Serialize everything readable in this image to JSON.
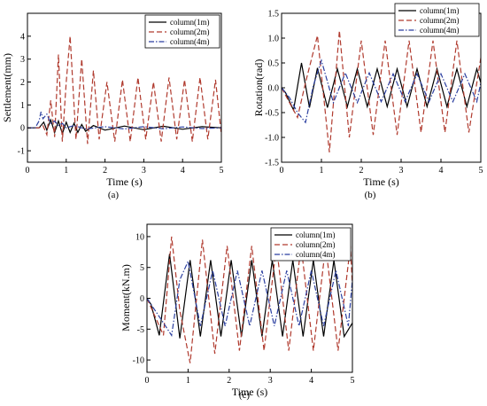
{
  "chart_data": [
    {
      "type": "line",
      "panel_label": "(a)",
      "xlabel": "Time (s)",
      "ylabel": "Settlement(mm)",
      "xlim": [
        0,
        5
      ],
      "ylim": [
        -1.5,
        5.0
      ],
      "xticks": [
        0,
        1,
        2,
        3,
        4,
        5
      ],
      "yticks": [
        -1,
        0,
        1,
        2,
        3,
        4
      ],
      "legend_placement": "top-right",
      "series": [
        {
          "name": "column(1m)",
          "color": "#000000",
          "dash": "solid",
          "x": [
            0,
            0.3,
            0.42,
            0.5,
            0.6,
            0.7,
            0.8,
            0.9,
            1.0,
            1.1,
            1.2,
            1.3,
            1.4,
            1.5,
            1.7,
            2.0,
            2.5,
            3.0,
            3.5,
            4.0,
            4.5,
            5.0
          ],
          "y": [
            0,
            0,
            0.25,
            -0.1,
            0.35,
            -0.2,
            0.3,
            -0.25,
            0.25,
            -0.2,
            0.2,
            -0.2,
            0.15,
            -0.15,
            0.1,
            -0.1,
            0.08,
            -0.08,
            0.07,
            -0.06,
            0.05,
            0
          ]
        },
        {
          "name": "column(2m)",
          "color": "#b03a2e",
          "dash": "dashed",
          "x": [
            0,
            0.3,
            0.4,
            0.5,
            0.6,
            0.7,
            0.8,
            0.9,
            1.0,
            1.1,
            1.25,
            1.4,
            1.55,
            1.7,
            1.85,
            2.05,
            2.25,
            2.45,
            2.65,
            2.85,
            3.05,
            3.25,
            3.45,
            3.65,
            3.85,
            4.05,
            4.25,
            4.45,
            4.65,
            4.85,
            5.0
          ],
          "y": [
            0,
            0,
            0.1,
            -0.3,
            1.2,
            -0.4,
            3.2,
            -0.6,
            2.0,
            4.0,
            -0.5,
            3.0,
            -0.7,
            2.5,
            -0.5,
            2.0,
            -0.6,
            2.1,
            -0.6,
            2.2,
            -0.5,
            2.0,
            -0.6,
            2.2,
            -0.5,
            2.1,
            -0.6,
            2.2,
            -0.5,
            2.1,
            -0.3
          ]
        },
        {
          "name": "column(4m)",
          "color": "#2b3fa0",
          "dash": "dashdot",
          "x": [
            0,
            0.2,
            0.3,
            0.35,
            0.4,
            0.5,
            0.6,
            0.7,
            0.8,
            0.9,
            1.0,
            1.2,
            1.5,
            2.0,
            2.5,
            3.0,
            3.5,
            4.0,
            4.5,
            5.0
          ],
          "y": [
            0,
            0,
            0.3,
            0.7,
            0.4,
            0.6,
            0.2,
            0.3,
            0.1,
            0.2,
            0.0,
            0.1,
            -0.05,
            0.05,
            -0.05,
            0.05,
            -0.04,
            0.04,
            -0.03,
            0
          ]
        }
      ]
    },
    {
      "type": "line",
      "panel_label": "(b)",
      "xlabel": "Time (s)",
      "ylabel": "Rotation(rad)",
      "xlim": [
        0,
        5
      ],
      "ylim": [
        -1.5,
        1.5
      ],
      "xticks": [
        0,
        1,
        2,
        3,
        4,
        5
      ],
      "yticks": [
        -1.5,
        -1.0,
        -0.5,
        0.0,
        0.5,
        1.0,
        1.5
      ],
      "legend_placement": "top-right",
      "series": [
        {
          "name": "column(1m)",
          "color": "#000000",
          "dash": "solid",
          "x": [
            0,
            0.1,
            0.3,
            0.5,
            0.7,
            0.9,
            1.15,
            1.4,
            1.65,
            1.9,
            2.15,
            2.4,
            2.65,
            2.9,
            3.15,
            3.4,
            3.65,
            3.9,
            4.15,
            4.4,
            4.65,
            4.9,
            5.0
          ],
          "y": [
            0,
            -0.1,
            -0.45,
            0.5,
            -0.4,
            0.4,
            -0.4,
            0.38,
            -0.38,
            0.38,
            -0.38,
            0.38,
            -0.38,
            0.38,
            -0.38,
            0.38,
            -0.38,
            0.38,
            -0.38,
            0.38,
            -0.38,
            0.38,
            0.1
          ]
        },
        {
          "name": "column(2m)",
          "color": "#b03a2e",
          "dash": "dashed",
          "x": [
            0,
            0.2,
            0.4,
            0.6,
            0.9,
            1.2,
            1.45,
            1.7,
            2.0,
            2.3,
            2.6,
            2.9,
            3.2,
            3.5,
            3.8,
            4.1,
            4.4,
            4.7,
            5.0
          ],
          "y": [
            0,
            -0.3,
            -0.6,
            0.1,
            1.05,
            -1.3,
            1.15,
            -1.0,
            0.95,
            -0.95,
            0.95,
            -0.95,
            0.95,
            -0.9,
            0.95,
            -0.9,
            0.95,
            -0.9,
            0.6
          ]
        },
        {
          "name": "column(4m)",
          "color": "#2b3fa0",
          "dash": "dashdot",
          "x": [
            0,
            0.2,
            0.4,
            0.6,
            0.8,
            1.0,
            1.3,
            1.6,
            1.9,
            2.2,
            2.5,
            2.8,
            3.1,
            3.4,
            3.7,
            4.0,
            4.3,
            4.6,
            4.9,
            5.0
          ],
          "y": [
            0,
            -0.2,
            -0.5,
            -0.7,
            0.05,
            0.55,
            -0.3,
            0.3,
            -0.3,
            0.3,
            -0.28,
            0.28,
            -0.28,
            0.28,
            -0.28,
            0.28,
            -0.28,
            0.28,
            -0.28,
            0.1
          ]
        }
      ]
    },
    {
      "type": "line",
      "panel_label": "(c)",
      "xlabel": "Time (s)",
      "ylabel": "Moment(kN.m)",
      "xlim": [
        0,
        5
      ],
      "ylim": [
        -12,
        12
      ],
      "xticks": [
        0,
        1,
        2,
        3,
        4,
        5
      ],
      "yticks": [
        -10,
        -5,
        0,
        5,
        10
      ],
      "legend_placement": "top-right",
      "series": [
        {
          "name": "column(1m)",
          "color": "#000000",
          "dash": "solid",
          "x": [
            0,
            0.1,
            0.3,
            0.55,
            0.8,
            1.05,
            1.3,
            1.55,
            1.8,
            2.05,
            2.3,
            2.55,
            2.8,
            3.05,
            3.3,
            3.55,
            3.8,
            4.05,
            4.3,
            4.55,
            4.8,
            5.0
          ],
          "y": [
            0,
            -1,
            -6,
            7.2,
            -6.5,
            6.2,
            -6.2,
            6.2,
            -6.2,
            6.2,
            -6.2,
            6.2,
            -6.2,
            6.2,
            -6.2,
            6.2,
            -6.2,
            6.2,
            -6.2,
            6.2,
            -6.2,
            -4
          ]
        },
        {
          "name": "column(2m)",
          "color": "#b03a2e",
          "dash": "dashed",
          "x": [
            0,
            0.2,
            0.4,
            0.6,
            0.8,
            1.05,
            1.35,
            1.65,
            1.95,
            2.25,
            2.55,
            2.85,
            3.15,
            3.45,
            3.75,
            4.05,
            4.35,
            4.65,
            4.95,
            5.0
          ],
          "y": [
            0,
            -3,
            -6,
            10,
            -2,
            -10.5,
            9.5,
            -9,
            8.5,
            -8.5,
            8.5,
            -8.5,
            8.5,
            -8.5,
            8.5,
            -8.5,
            8.5,
            -8.5,
            8.5,
            2
          ]
        },
        {
          "name": "column(4m)",
          "color": "#2b3fa0",
          "dash": "dashdot",
          "x": [
            0,
            0.2,
            0.4,
            0.6,
            0.8,
            1.0,
            1.3,
            1.6,
            1.9,
            2.2,
            2.5,
            2.8,
            3.1,
            3.4,
            3.7,
            4.0,
            4.3,
            4.6,
            4.9,
            5.0
          ],
          "y": [
            0,
            -2,
            -4,
            -6,
            3,
            6,
            -4.5,
            4.5,
            -4.5,
            4.5,
            -4.5,
            4.5,
            -4.5,
            4.5,
            -4.5,
            4.5,
            -4.5,
            4.5,
            -4.5,
            3
          ]
        }
      ]
    }
  ]
}
